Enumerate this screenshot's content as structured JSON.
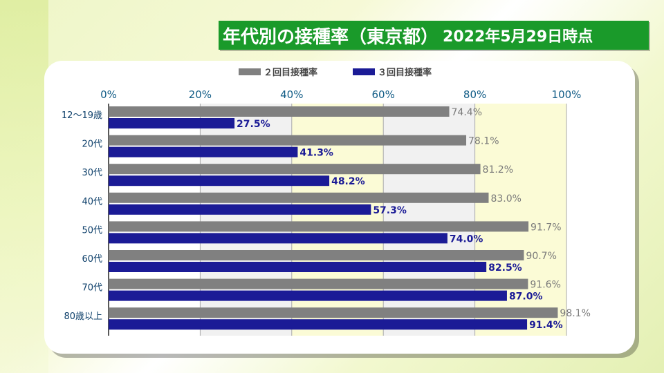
{
  "title": {
    "main": "年代別の接種率（東京都）",
    "sub": "2022年5月29日時点"
  },
  "colors": {
    "series2": "#808080",
    "series3": "#1b1b96",
    "title_bg": "#1a9a2a"
  },
  "chart_data": {
    "type": "bar",
    "orientation": "horizontal",
    "categories": [
      "12～19歳",
      "20代",
      "30代",
      "40代",
      "50代",
      "60代",
      "70代",
      "80歳以上"
    ],
    "series": [
      {
        "name": "２回目接種率",
        "values": [
          74.4,
          78.1,
          81.2,
          83.0,
          91.7,
          90.7,
          91.6,
          98.1
        ],
        "labels": [
          "74.4%",
          "78.1%",
          "81.2%",
          "83.0%",
          "91.7%",
          "90.7%",
          "91.6%",
          "98.1%"
        ]
      },
      {
        "name": "３回目接種率",
        "values": [
          27.5,
          41.3,
          48.2,
          57.3,
          74.0,
          82.5,
          87.0,
          91.4
        ],
        "labels": [
          "27.5%",
          "41.3%",
          "48.2%",
          "57.3%",
          "74.0%",
          "82.5%",
          "87.0%",
          "91.4%"
        ]
      }
    ],
    "xlim": [
      0,
      100
    ],
    "ticks": [
      "0%",
      "20%",
      "40%",
      "60%",
      "80%",
      "100%"
    ],
    "grid": true,
    "legend": "top-center"
  }
}
